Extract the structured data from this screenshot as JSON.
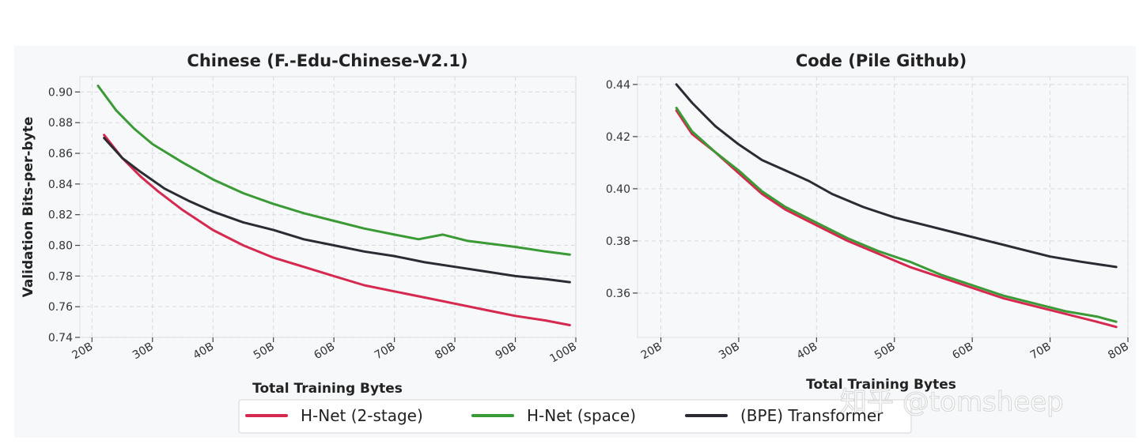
{
  "watermark": "知乎 @tomsheep",
  "legend": [
    {
      "label": "H-Net (2-stage)",
      "color": "#d6294f"
    },
    {
      "label": "H-Net (space)",
      "color": "#3a9a35"
    },
    {
      "label": "(BPE) Transformer",
      "color": "#2b2b33"
    }
  ],
  "chart_data": [
    {
      "type": "line",
      "title": "Chinese (F.-Edu-Chinese-V2.1)",
      "xlabel": "Total Training Bytes",
      "ylabel": "Validation Bits-per-byte",
      "xlim": [
        18,
        100
      ],
      "ylim": [
        0.74,
        0.91
      ],
      "x_ticks": [
        20,
        30,
        40,
        50,
        60,
        70,
        80,
        90,
        100
      ],
      "x_tick_labels": [
        "20B",
        "30B",
        "40B",
        "50B",
        "60B",
        "70B",
        "80B",
        "90B",
        "100B"
      ],
      "y_ticks": [
        0.74,
        0.76,
        0.78,
        0.8,
        0.82,
        0.84,
        0.86,
        0.88,
        0.9
      ],
      "y_tick_labels": [
        "0.74",
        "0.76",
        "0.78",
        "0.80",
        "0.82",
        "0.84",
        "0.86",
        "0.88",
        "0.90"
      ],
      "grid": true,
      "series": [
        {
          "name": "H-Net (2-stage)",
          "color": "#d6294f",
          "x": [
            22,
            25,
            28,
            31,
            35,
            40,
            45,
            50,
            55,
            60,
            65,
            70,
            75,
            80,
            85,
            90,
            95,
            99
          ],
          "y": [
            0.872,
            0.857,
            0.845,
            0.835,
            0.823,
            0.81,
            0.8,
            0.792,
            0.786,
            0.78,
            0.774,
            0.77,
            0.766,
            0.762,
            0.758,
            0.754,
            0.751,
            0.748
          ]
        },
        {
          "name": "H-Net (space)",
          "color": "#3a9a35",
          "x": [
            21,
            24,
            27,
            30,
            35,
            40,
            45,
            50,
            55,
            60,
            65,
            70,
            74,
            78,
            82,
            86,
            90,
            95,
            99
          ],
          "y": [
            0.904,
            0.888,
            0.876,
            0.866,
            0.854,
            0.843,
            0.834,
            0.827,
            0.821,
            0.816,
            0.811,
            0.807,
            0.804,
            0.807,
            0.803,
            0.801,
            0.799,
            0.796,
            0.794
          ]
        },
        {
          "name": "(BPE) Transformer",
          "color": "#2b2b33",
          "x": [
            22,
            25,
            28,
            32,
            36,
            40,
            45,
            50,
            55,
            60,
            65,
            70,
            75,
            80,
            85,
            90,
            95,
            99
          ],
          "y": [
            0.87,
            0.857,
            0.848,
            0.837,
            0.829,
            0.822,
            0.815,
            0.81,
            0.804,
            0.8,
            0.796,
            0.793,
            0.789,
            0.786,
            0.783,
            0.78,
            0.778,
            0.776
          ]
        }
      ]
    },
    {
      "type": "line",
      "title": "Code (Pile Github)",
      "xlabel": "Total Training Bytes",
      "ylabel": "",
      "xlim": [
        17,
        80
      ],
      "ylim": [
        0.343,
        0.443
      ],
      "x_ticks": [
        20,
        30,
        40,
        50,
        60,
        70,
        80
      ],
      "x_tick_labels": [
        "20B",
        "30B",
        "40B",
        "50B",
        "60B",
        "70B",
        "80B"
      ],
      "y_ticks": [
        0.36,
        0.38,
        0.4,
        0.42,
        0.44
      ],
      "y_tick_labels": [
        "0.36",
        "0.38",
        "0.40",
        "0.42",
        "0.44"
      ],
      "grid": true,
      "series": [
        {
          "name": "H-Net (2-stage)",
          "color": "#d6294f",
          "x": [
            22,
            24,
            27,
            30,
            33,
            36,
            40,
            44,
            48,
            52,
            56,
            60,
            64,
            68,
            72,
            76,
            78.5
          ],
          "y": [
            0.43,
            0.421,
            0.414,
            0.406,
            0.398,
            0.392,
            0.386,
            0.38,
            0.375,
            0.37,
            0.366,
            0.362,
            0.358,
            0.355,
            0.352,
            0.349,
            0.347
          ]
        },
        {
          "name": "H-Net (space)",
          "color": "#3a9a35",
          "x": [
            22,
            24,
            27,
            30,
            33,
            36,
            40,
            44,
            48,
            52,
            56,
            60,
            64,
            68,
            72,
            76,
            78.5
          ],
          "y": [
            0.431,
            0.422,
            0.414,
            0.407,
            0.399,
            0.393,
            0.387,
            0.381,
            0.376,
            0.372,
            0.367,
            0.363,
            0.359,
            0.356,
            0.353,
            0.351,
            0.349
          ]
        },
        {
          "name": "(BPE) Transformer",
          "color": "#2b2b33",
          "x": [
            22,
            24,
            27,
            30,
            33,
            36,
            39,
            42,
            46,
            50,
            54,
            58,
            62,
            66,
            70,
            74,
            78.5
          ],
          "y": [
            0.44,
            0.433,
            0.424,
            0.417,
            0.411,
            0.407,
            0.403,
            0.398,
            0.393,
            0.389,
            0.386,
            0.383,
            0.38,
            0.377,
            0.374,
            0.372,
            0.37
          ]
        }
      ]
    }
  ]
}
